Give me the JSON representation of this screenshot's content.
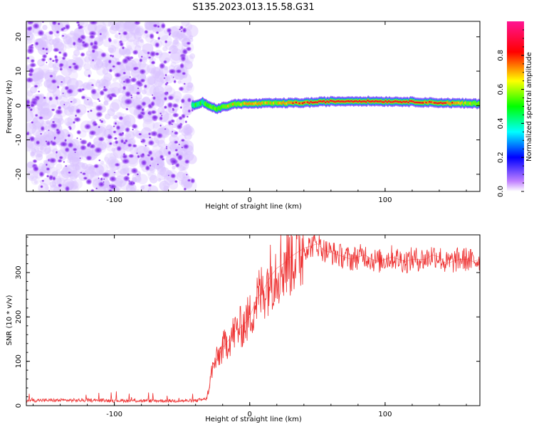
{
  "figure": {
    "title": "S135.2023.013.15.58.G31"
  },
  "chart_data": [
    {
      "type": "heatmap",
      "xlabel": "Height of straight line (km)",
      "ylabel": "Frequency (Hz)",
      "xlim": [
        -165,
        170
      ],
      "ylim": [
        -25,
        24.5
      ],
      "xticks": [
        -100,
        0,
        100
      ],
      "xtick_labels": [
        "-100",
        "0",
        "100"
      ],
      "yticks": [
        -20,
        -10,
        0,
        10,
        20
      ],
      "ytick_labels": [
        "-20",
        "-10",
        "0",
        "10",
        "20"
      ],
      "grid": false,
      "noise_region": {
        "x_range": [
          -165,
          -42
        ],
        "y_range": [
          -25,
          24.5
        ]
      },
      "signal_ridge": {
        "x": [
          -42,
          -35,
          -30,
          -25,
          -20,
          -10,
          0,
          20,
          40,
          60,
          80,
          100,
          120,
          140,
          170
        ],
        "y": [
          0,
          1,
          0,
          -1,
          -0.5,
          0.5,
          0.5,
          0.7,
          0.8,
          1.2,
          1.3,
          1.2,
          1.1,
          0.8,
          0.5
        ],
        "peak_amplitude": [
          0.45,
          0.5,
          0.6,
          0.55,
          0.6,
          0.7,
          0.75,
          0.7,
          0.85,
          0.95,
          0.9,
          0.95,
          0.9,
          0.85,
          0.6
        ]
      },
      "colorbar": {
        "label": "Normalized spectral amplitude",
        "range": [
          0,
          1
        ],
        "ticks": [
          0,
          0.2,
          0.4,
          0.6,
          0.8
        ],
        "tick_labels": [
          "0.0",
          "0.2",
          "0.4",
          "0.6",
          "0.8"
        ],
        "colors": [
          "#ffffff",
          "#8a2be2",
          "#0000ff",
          "#00ffff",
          "#00ff00",
          "#ffff00",
          "#ff0000",
          "#ff1493"
        ]
      }
    },
    {
      "type": "line",
      "xlabel": "Height of straight line (km)",
      "ylabel": "SNR (10 * v/v)",
      "xlim": [
        -165,
        170
      ],
      "ylim": [
        0,
        385
      ],
      "xticks": [
        -100,
        0,
        100
      ],
      "xtick_labels": [
        "-100",
        "0",
        "100"
      ],
      "yticks": [
        0,
        100,
        200,
        300
      ],
      "ytick_labels": [
        "0",
        "100",
        "200",
        "300"
      ],
      "grid": false,
      "series": [
        {
          "color": "#ee3030",
          "x": [
            -165,
            -120,
            -80,
            -40,
            -32,
            -30,
            -28,
            -25,
            -20,
            -15,
            -10,
            -5,
            0,
            5,
            10,
            15,
            20,
            25,
            30,
            35,
            40,
            45,
            50,
            55,
            60,
            65,
            70,
            75,
            80,
            85,
            90,
            95,
            100,
            105,
            110,
            115,
            120,
            125,
            130,
            135,
            140,
            145,
            150,
            155,
            160,
            165,
            170
          ],
          "y": [
            12,
            12,
            11,
            11,
            15,
            40,
            80,
            100,
            130,
            150,
            170,
            180,
            200,
            240,
            260,
            290,
            310,
            320,
            335,
            345,
            355,
            360,
            365,
            350,
            345,
            340,
            335,
            330,
            335,
            340,
            330,
            325,
            330,
            335,
            330,
            325,
            330,
            330,
            330,
            340,
            335,
            320,
            325,
            330,
            330,
            325,
            330
          ]
        }
      ]
    }
  ]
}
